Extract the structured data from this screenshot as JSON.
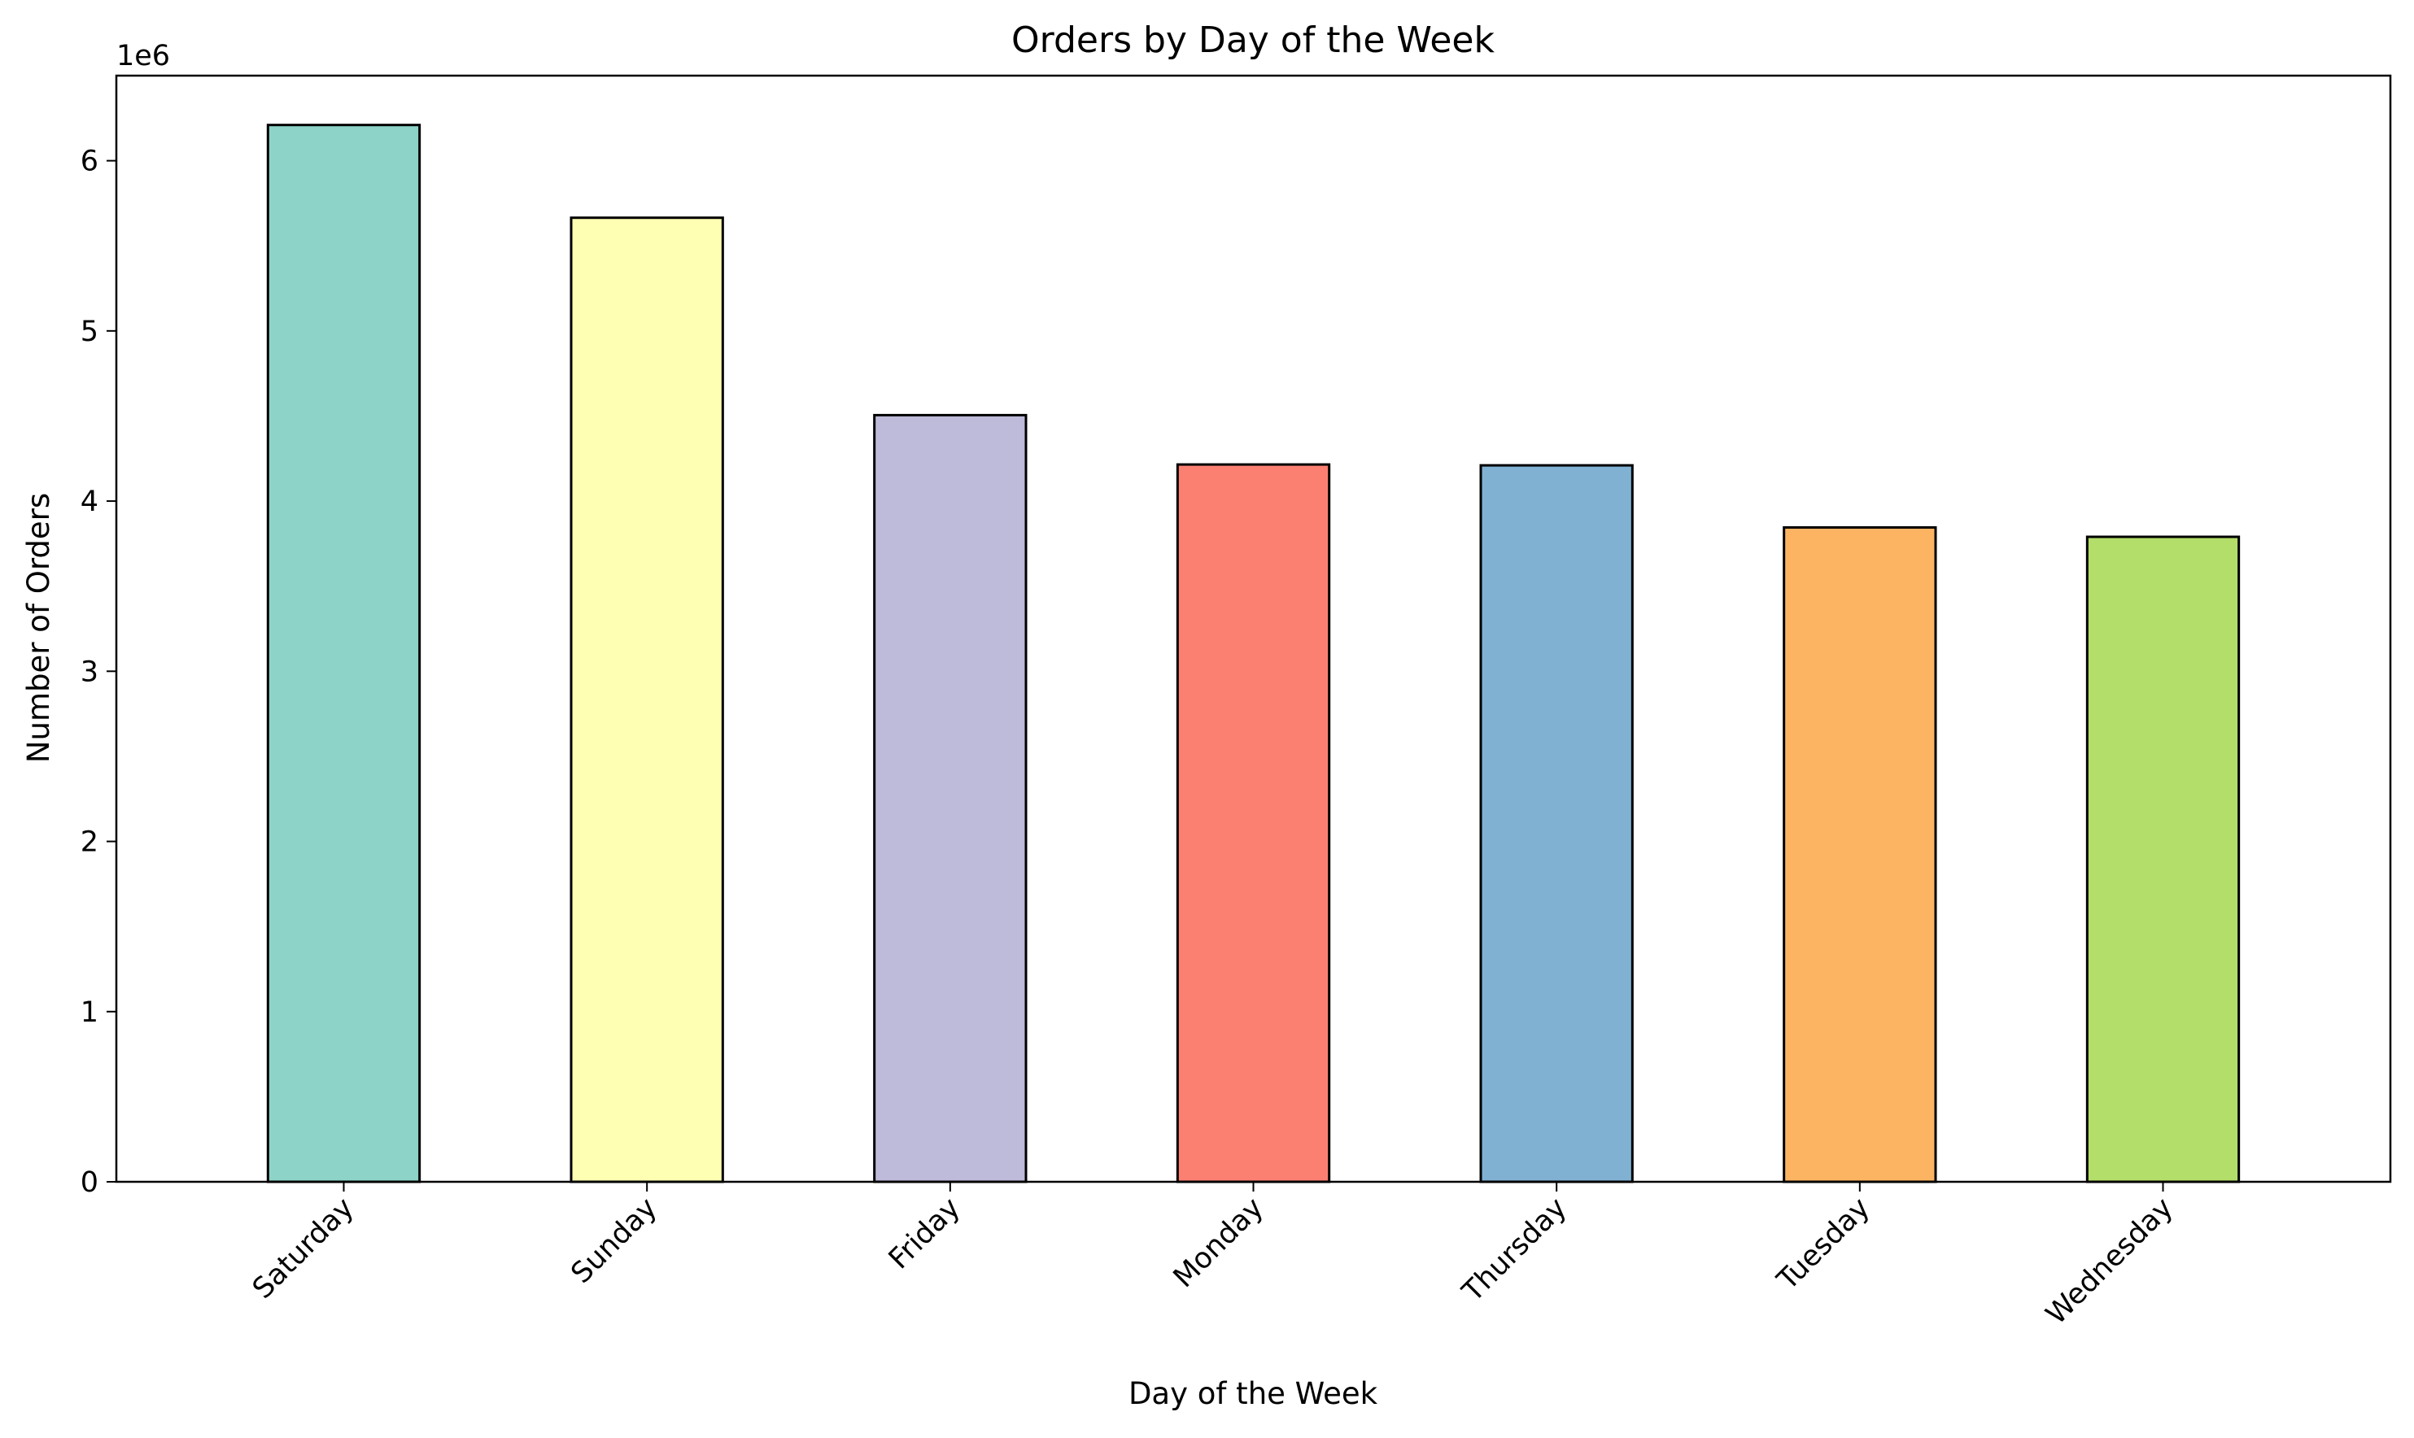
{
  "chart_data": {
    "type": "bar",
    "title": "Orders by Day of the Week",
    "xlabel": "Day of the Week",
    "ylabel": "Number of Orders",
    "y_offset_label": "1e6",
    "y_scale": 1000000,
    "categories": [
      "Saturday",
      "Sunday",
      "Friday",
      "Monday",
      "Thursday",
      "Tuesday",
      "Wednesday"
    ],
    "values": [
      6210000,
      5665000,
      4505000,
      4215000,
      4210000,
      3845000,
      3790000
    ],
    "colors": [
      "#8dd3c7",
      "#ffffb3",
      "#bebada",
      "#fb8072",
      "#80b1d3",
      "#fdb462",
      "#b3de69"
    ],
    "ylim": [
      0,
      6500000
    ],
    "yticks": [
      0,
      1,
      2,
      3,
      4,
      5,
      6
    ],
    "grid": false,
    "legend": "none",
    "x_tick_rotation": -45
  }
}
